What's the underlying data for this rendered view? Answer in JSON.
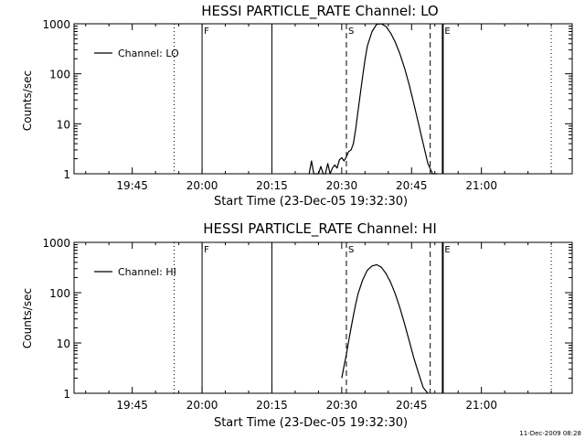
{
  "footer": {
    "timestamp": "11-Dec-2009 08:28"
  },
  "chart_data": [
    {
      "type": "line",
      "title": "HESSI PARTICLE_RATE Channel: LO",
      "xlabel": "Start Time (23-Dec-05 19:32:30)",
      "ylabel": "Counts/sec",
      "xlim_minutes": [
        0,
        107
      ],
      "x_ticks": [
        {
          "t": 12.5,
          "label": "19:45"
        },
        {
          "t": 27.5,
          "label": "20:00"
        },
        {
          "t": 42.5,
          "label": "20:15"
        },
        {
          "t": 57.5,
          "label": "20:30"
        },
        {
          "t": 72.5,
          "label": "20:45"
        },
        {
          "t": 87.5,
          "label": "21:00"
        }
      ],
      "y_scale": "log",
      "ylim": [
        1,
        1000
      ],
      "y_ticks": [
        {
          "v": 1,
          "label": "1"
        },
        {
          "v": 10,
          "label": "10"
        },
        {
          "v": 100,
          "label": "100"
        },
        {
          "v": 1000,
          "label": "1000"
        }
      ],
      "legend": {
        "placement": "top-left",
        "entries": [
          {
            "name": "Channel: LO"
          }
        ]
      },
      "markers": [
        {
          "t": 21.5,
          "style": "dotted",
          "label": ""
        },
        {
          "t": 27.5,
          "style": "solid",
          "label": "F"
        },
        {
          "t": 42.5,
          "style": "solid",
          "label": ""
        },
        {
          "t": 58.5,
          "style": "dashed",
          "label": "S"
        },
        {
          "t": 76.5,
          "style": "dashed",
          "label": ""
        },
        {
          "t": 79.2,
          "style": "solid-thick",
          "label": "E"
        },
        {
          "t": 102.5,
          "style": "dotted",
          "label": ""
        }
      ],
      "series": [
        {
          "name": "Channel: LO",
          "x_minutes": [
            50.5,
            51.0,
            51.5,
            52.0,
            52.5,
            53.0,
            53.5,
            54.0,
            54.5,
            55.0,
            55.5,
            56.0,
            56.5,
            57.0,
            57.5,
            58.0,
            58.5,
            59.0,
            59.5,
            60.0,
            60.5,
            61.0,
            61.5,
            62.0,
            62.5,
            63.0,
            64.0,
            65.0,
            66.0,
            67.0,
            68.0,
            69.0,
            70.0,
            71.0,
            72.0,
            73.0,
            74.0,
            75.0,
            76.0,
            77.0,
            78.0
          ],
          "values": [
            1.0,
            1.8,
            1.0,
            1.0,
            1.0,
            1.4,
            1.0,
            1.0,
            1.6,
            1.0,
            1.3,
            1.5,
            1.3,
            1.9,
            2.1,
            1.8,
            2.2,
            2.8,
            3.0,
            4.0,
            8.0,
            18.0,
            40.0,
            90.0,
            190.0,
            360.0,
            700.0,
            980.0,
            1000.0,
            880.0,
            650.0,
            430.0,
            250.0,
            130.0,
            60.0,
            25.0,
            10.0,
            4.0,
            1.6,
            1.0,
            1.0
          ]
        }
      ]
    },
    {
      "type": "line",
      "title": "HESSI PARTICLE_RATE Channel: HI",
      "xlabel": "Start Time (23-Dec-05 19:32:30)",
      "ylabel": "Counts/sec",
      "xlim_minutes": [
        0,
        107
      ],
      "x_ticks": [
        {
          "t": 12.5,
          "label": "19:45"
        },
        {
          "t": 27.5,
          "label": "20:00"
        },
        {
          "t": 42.5,
          "label": "20:15"
        },
        {
          "t": 57.5,
          "label": "20:30"
        },
        {
          "t": 72.5,
          "label": "20:45"
        },
        {
          "t": 87.5,
          "label": "21:00"
        }
      ],
      "y_scale": "log",
      "ylim": [
        1,
        1000
      ],
      "y_ticks": [
        {
          "v": 1,
          "label": "1"
        },
        {
          "v": 10,
          "label": "10"
        },
        {
          "v": 100,
          "label": "100"
        },
        {
          "v": 1000,
          "label": "1000"
        }
      ],
      "legend": {
        "placement": "top-left",
        "entries": [
          {
            "name": "Channel: HI"
          }
        ]
      },
      "markers": [
        {
          "t": 21.5,
          "style": "dotted",
          "label": ""
        },
        {
          "t": 27.5,
          "style": "solid",
          "label": "F"
        },
        {
          "t": 42.5,
          "style": "solid",
          "label": ""
        },
        {
          "t": 58.5,
          "style": "dashed",
          "label": "S"
        },
        {
          "t": 76.5,
          "style": "dashed",
          "label": ""
        },
        {
          "t": 79.2,
          "style": "solid-thick",
          "label": "E"
        },
        {
          "t": 102.5,
          "style": "dotted",
          "label": ""
        }
      ],
      "series": [
        {
          "name": "Channel: HI",
          "x_minutes": [
            57.5,
            58.0,
            58.5,
            59.0,
            59.5,
            60.0,
            60.5,
            61.0,
            62.0,
            63.0,
            64.0,
            65.0,
            66.0,
            67.0,
            68.0,
            69.0,
            70.0,
            71.0,
            72.0,
            73.0,
            74.0,
            75.0,
            76.0
          ],
          "values": [
            2.0,
            3.5,
            6.0,
            11.0,
            20.0,
            35.0,
            60.0,
            95.0,
            180.0,
            280.0,
            340.0,
            360.0,
            320.0,
            240.0,
            160.0,
            95.0,
            50.0,
            24.0,
            11.0,
            5.0,
            2.5,
            1.3,
            1.0
          ]
        }
      ]
    }
  ]
}
